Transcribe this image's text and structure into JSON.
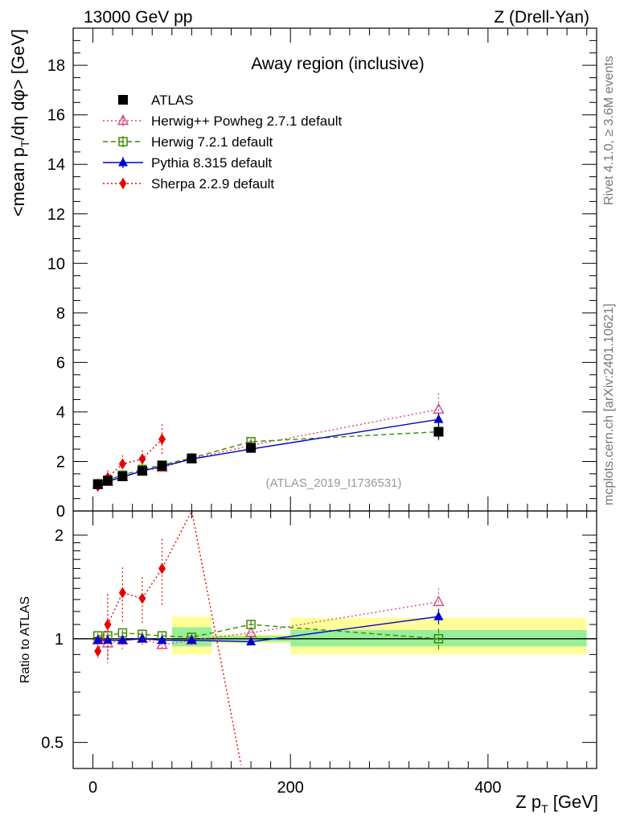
{
  "header": {
    "left": "13000 GeV pp",
    "right": "Z (Drell-Yan)"
  },
  "side_text": {
    "rivet": "Rivet 4.1.0, ≥ 3.6M events",
    "mcplots": "mcplots.cern.ch [arXiv:2401.10621]"
  },
  "chart_data": [
    {
      "type": "scatter",
      "panel": "main",
      "title": "Away region (inclusive)",
      "ylabel": "<mean p_T/dη dφ> [GeV]",
      "watermark": "(ATLAS_2019_I1736531)",
      "xlim": [
        -20,
        510
      ],
      "ylim": [
        0,
        19.5
      ],
      "yticks": [
        0,
        2,
        4,
        6,
        8,
        10,
        12,
        14,
        16,
        18
      ],
      "ytick_labels": [
        "0",
        "2",
        "4",
        "6",
        "8",
        "10",
        "12",
        "14",
        "16",
        "18"
      ],
      "series": [
        {
          "name": "ATLAS",
          "color": "#000000",
          "marker": "square-filled",
          "line": "none",
          "x": [
            5,
            15,
            30,
            50,
            70,
            100,
            160,
            350
          ],
          "y": [
            1.08,
            1.22,
            1.4,
            1.62,
            1.82,
            2.12,
            2.55,
            3.2
          ],
          "err": [
            0.03,
            0.04,
            0.05,
            0.05,
            0.06,
            0.06,
            0.08,
            0.3
          ]
        },
        {
          "name": "Herwig++ Powheg 2.7.1 default",
          "color": "#d6497c",
          "marker": "triangle-open",
          "line": "dotted",
          "x": [
            5,
            15,
            30,
            50,
            70,
            100,
            160,
            350
          ],
          "y": [
            1.07,
            1.18,
            1.38,
            1.63,
            1.75,
            2.1,
            2.65,
            4.1
          ],
          "err": [
            0.05,
            0.08,
            0.08,
            0.08,
            0.08,
            0.08,
            0.12,
            0.65
          ]
        },
        {
          "name": "Herwig 7.2.1 default",
          "color": "#3a8a00",
          "marker": "square-open",
          "line": "dashed",
          "x": [
            5,
            15,
            30,
            50,
            70,
            100,
            160,
            350
          ],
          "y": [
            1.1,
            1.25,
            1.45,
            1.68,
            1.86,
            2.14,
            2.8,
            3.2
          ],
          "err": [
            0.02,
            0.03,
            0.03,
            0.03,
            0.03,
            0.04,
            0.1,
            0.35
          ]
        },
        {
          "name": "Pythia 8.315 default",
          "color": "#0000cc",
          "marker": "triangle-filled",
          "line": "solid",
          "x": [
            5,
            15,
            30,
            50,
            70,
            100,
            160,
            350
          ],
          "y": [
            1.07,
            1.2,
            1.37,
            1.62,
            1.8,
            2.1,
            2.5,
            3.7
          ],
          "err": [
            0.02,
            0.02,
            0.02,
            0.02,
            0.02,
            0.03,
            0.05,
            0.25
          ]
        },
        {
          "name": "Sherpa 2.2.9 default",
          "color": "#e60000",
          "marker": "diamond-filled",
          "line": "dotted",
          "x": [
            5,
            15,
            30,
            50,
            70
          ],
          "y": [
            1.0,
            1.35,
            1.9,
            2.1,
            2.9
          ],
          "err": [
            0.1,
            0.3,
            0.35,
            0.35,
            0.6
          ]
        }
      ],
      "legend_position": "top-left"
    },
    {
      "type": "scatter",
      "panel": "ratio",
      "ylabel": "Ratio to ATLAS",
      "xlabel": "Z p_T [GeV]",
      "xlim": [
        -20,
        510
      ],
      "ylim": [
        0.42,
        2.35
      ],
      "yscale": "log",
      "xticks": [
        0,
        200,
        400
      ],
      "xtick_labels": [
        "0",
        "200",
        "400"
      ],
      "yticks": [
        0.5,
        1,
        2
      ],
      "ytick_labels": [
        "0.5",
        "1",
        "2"
      ],
      "bands": [
        {
          "x": [
            80,
            120
          ],
          "inner": [
            0.95,
            1.08
          ],
          "outer": [
            0.9,
            1.16
          ]
        },
        {
          "x": [
            120,
            200
          ],
          "inner": [
            0.98,
            1.02
          ],
          "outer": [
            0.97,
            1.03
          ]
        },
        {
          "x": [
            200,
            500
          ],
          "inner": [
            0.95,
            1.06
          ],
          "outer": [
            0.9,
            1.15
          ]
        }
      ],
      "series": [
        {
          "name": "Herwig++ Powheg 2.7.1 default",
          "color": "#d6497c",
          "marker": "triangle-open",
          "line": "dotted",
          "x": [
            5,
            15,
            30,
            50,
            70,
            100,
            160,
            350
          ],
          "y": [
            0.99,
            0.97,
            0.99,
            1.0,
            0.96,
            0.99,
            1.04,
            1.28
          ],
          "err": [
            0.04,
            0.1,
            0.06,
            0.05,
            0.04,
            0.03,
            0.04,
            0.12
          ]
        },
        {
          "name": "Herwig 7.2.1 default",
          "color": "#3a8a00",
          "marker": "square-open",
          "line": "dashed",
          "x": [
            5,
            15,
            30,
            50,
            70,
            100,
            160,
            350
          ],
          "y": [
            1.02,
            1.02,
            1.04,
            1.03,
            1.02,
            1.01,
            1.1,
            1.0
          ],
          "err": [
            0.02,
            0.02,
            0.02,
            0.02,
            0.02,
            0.02,
            0.03,
            0.07
          ]
        },
        {
          "name": "Pythia 8.315 default",
          "color": "#0000cc",
          "marker": "triangle-filled",
          "line": "solid",
          "x": [
            5,
            15,
            30,
            50,
            70,
            100,
            160,
            350
          ],
          "y": [
            0.99,
            0.99,
            0.99,
            1.0,
            0.99,
            0.99,
            0.98,
            1.16
          ],
          "err": [
            0.01,
            0.01,
            0.01,
            0.01,
            0.01,
            0.01,
            0.02,
            0.06
          ]
        },
        {
          "name": "Sherpa 2.2.9 default",
          "color": "#e60000",
          "marker": "diamond-filled",
          "line": "dotted",
          "x": [
            5,
            15,
            30,
            50,
            70,
            100,
            150
          ],
          "y": [
            0.92,
            1.1,
            1.36,
            1.31,
            1.6,
            2.35,
            0.43
          ],
          "err": [
            0.04,
            0.25,
            0.25,
            0.2,
            0.35,
            0,
            0
          ],
          "marker_count": 5
        }
      ]
    }
  ]
}
